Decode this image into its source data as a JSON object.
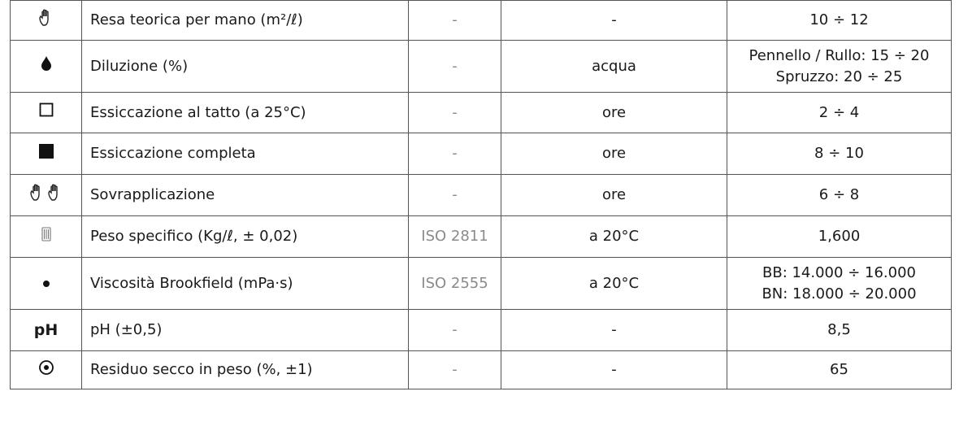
{
  "rows": [
    {
      "icon": "hand-icon",
      "property": "Resa teorica per mano (m²/ℓ)",
      "norm": "-",
      "unit": "-",
      "value": [
        "10 ÷ 12"
      ]
    },
    {
      "icon": "drop-icon",
      "property": "Diluzione (%)",
      "norm": "-",
      "unit": "acqua",
      "value": [
        "Pennello / Rullo: 15 ÷ 20",
        "Spruzzo: 20 ÷ 25"
      ]
    },
    {
      "icon": "empty-square-icon",
      "property": "Essiccazione al tatto (a 25°C)",
      "norm": "-",
      "unit": "ore",
      "value": [
        "2 ÷ 4"
      ]
    },
    {
      "icon": "filled-square-icon",
      "property": "Essiccazione completa",
      "norm": "-",
      "unit": "ore",
      "value": [
        "8 ÷ 10"
      ]
    },
    {
      "icon": "two-hands-icon",
      "property": "Sovrapplicazione",
      "norm": "-",
      "unit": "ore",
      "value": [
        "6 ÷ 8"
      ]
    },
    {
      "icon": "can-icon",
      "property": "Peso specifico (Kg/ℓ, ± 0,02)",
      "norm": "ISO 2811",
      "unit": "a 20°C",
      "value": [
        "1,600"
      ]
    },
    {
      "icon": "dot-icon",
      "property": "Viscosità Brookfield (mPa·s)",
      "norm": "ISO 2555",
      "unit": "a 20°C",
      "value": [
        "BB: 14.000 ÷ 16.000",
        "BN: 18.000 ÷ 20.000"
      ]
    },
    {
      "icon": "ph-icon",
      "icon_text": "pH",
      "property": "pH (±0,5)",
      "norm": "-",
      "unit": "-",
      "value": [
        "8,5"
      ]
    },
    {
      "icon": "target-icon",
      "property": "Residuo secco in peso (%, ±1)",
      "norm": "-",
      "unit": "-",
      "value": [
        "65"
      ]
    }
  ]
}
